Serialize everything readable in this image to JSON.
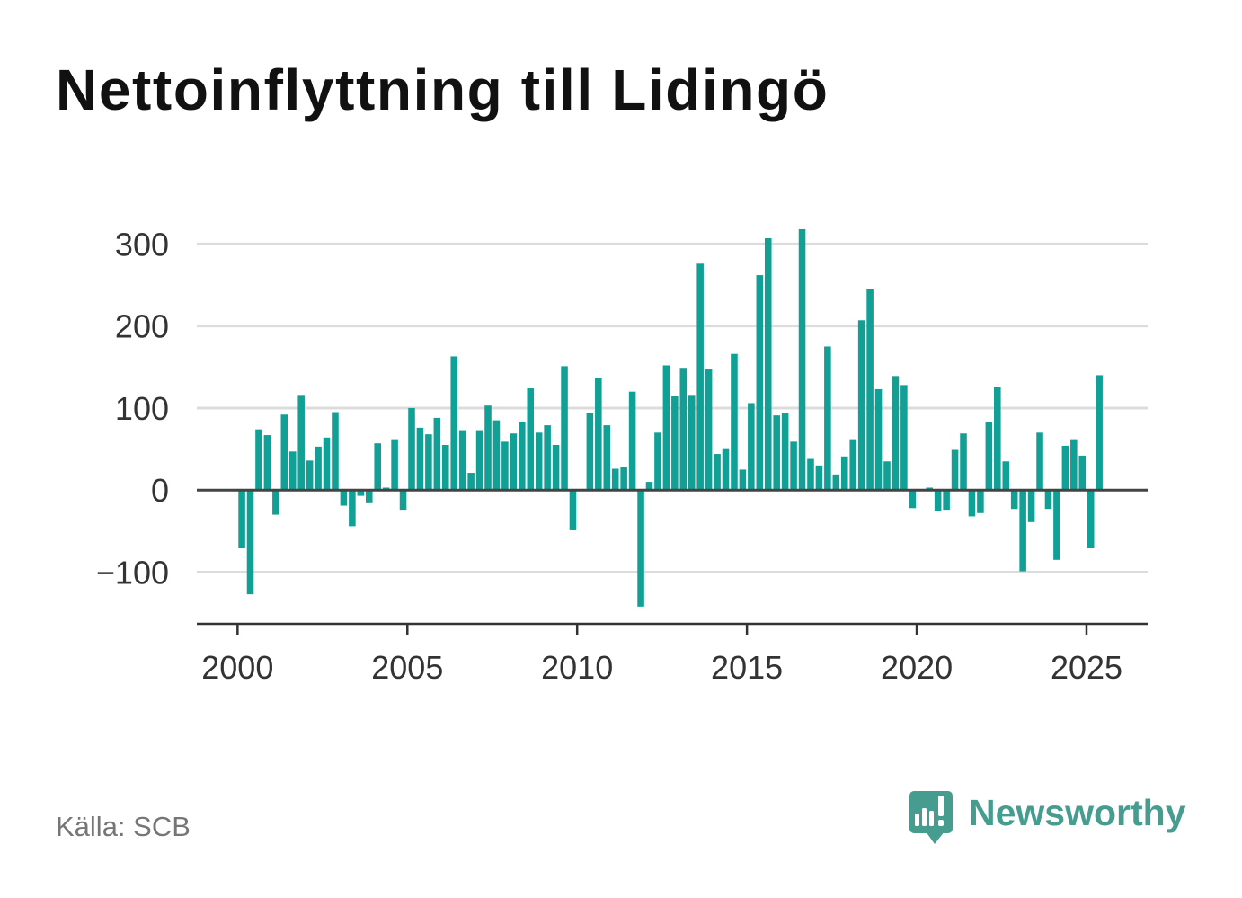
{
  "chart_data": {
    "type": "bar",
    "title": "Nettoinflyttning till Lidingö",
    "source": "Källa: SCB",
    "x": [
      "2000-Q1",
      "2000-Q2",
      "2000-Q3",
      "2000-Q4",
      "2001-Q1",
      "2001-Q2",
      "2001-Q3",
      "2001-Q4",
      "2002-Q1",
      "2002-Q2",
      "2002-Q3",
      "2002-Q4",
      "2003-Q1",
      "2003-Q2",
      "2003-Q3",
      "2003-Q4",
      "2004-Q1",
      "2004-Q2",
      "2004-Q3",
      "2004-Q4",
      "2005-Q1",
      "2005-Q2",
      "2005-Q3",
      "2005-Q4",
      "2006-Q1",
      "2006-Q2",
      "2006-Q3",
      "2006-Q4",
      "2007-Q1",
      "2007-Q2",
      "2007-Q3",
      "2007-Q4",
      "2008-Q1",
      "2008-Q2",
      "2008-Q3",
      "2008-Q4",
      "2009-Q1",
      "2009-Q2",
      "2009-Q3",
      "2009-Q4",
      "2010-Q1",
      "2010-Q2",
      "2010-Q3",
      "2010-Q4",
      "2011-Q1",
      "2011-Q2",
      "2011-Q3",
      "2011-Q4",
      "2012-Q1",
      "2012-Q2",
      "2012-Q3",
      "2012-Q4",
      "2013-Q1",
      "2013-Q2",
      "2013-Q3",
      "2013-Q4",
      "2014-Q1",
      "2014-Q2",
      "2014-Q3",
      "2014-Q4",
      "2015-Q1",
      "2015-Q2",
      "2015-Q3",
      "2015-Q4",
      "2016-Q1",
      "2016-Q2",
      "2016-Q3",
      "2016-Q4",
      "2017-Q1",
      "2017-Q2",
      "2017-Q3",
      "2017-Q4",
      "2018-Q1",
      "2018-Q2",
      "2018-Q3",
      "2018-Q4",
      "2019-Q1",
      "2019-Q2",
      "2019-Q3",
      "2019-Q4",
      "2020-Q1",
      "2020-Q2",
      "2020-Q3",
      "2020-Q4",
      "2021-Q1",
      "2021-Q2",
      "2021-Q3",
      "2021-Q4",
      "2022-Q1",
      "2022-Q2",
      "2022-Q3",
      "2022-Q4",
      "2023-Q1",
      "2023-Q2",
      "2023-Q3",
      "2023-Q4",
      "2024-Q1",
      "2024-Q2",
      "2024-Q3",
      "2024-Q4",
      "2025-Q1",
      "2025-Q2"
    ],
    "values": [
      -71,
      -127,
      74,
      67,
      -30,
      92,
      47,
      116,
      36,
      53,
      64,
      95,
      -19,
      -44,
      -7,
      -16,
      57,
      3,
      62,
      -24,
      100,
      76,
      68,
      88,
      55,
      163,
      73,
      21,
      73,
      103,
      85,
      59,
      69,
      83,
      124,
      70,
      79,
      55,
      151,
      -49,
      0,
      94,
      137,
      79,
      26,
      28,
      120,
      -142,
      10,
      70,
      152,
      115,
      149,
      116,
      276,
      147,
      44,
      51,
      166,
      25,
      106,
      262,
      307,
      91,
      94,
      59,
      318,
      38,
      30,
      175,
      19,
      41,
      62,
      207,
      245,
      123,
      35,
      139,
      128,
      -22,
      0,
      3,
      -26,
      -24,
      49,
      69,
      -32,
      -28,
      83,
      126,
      35,
      -23,
      -99,
      -39,
      70,
      -23,
      -85,
      54,
      62,
      42,
      -71,
      140
    ],
    "xticks": [
      2000,
      2005,
      2010,
      2015,
      2020,
      2025
    ],
    "yticks": [
      {
        "value": 300,
        "label": "300"
      },
      {
        "value": 200,
        "label": "200"
      },
      {
        "value": 100,
        "label": "100"
      },
      {
        "value": 0,
        "label": "0"
      },
      {
        "value": -100,
        "label": "−100"
      }
    ],
    "xlim": [
      1998.8,
      2026.8
    ],
    "ylim": [
      -163,
      330
    ],
    "grid": "horizontal",
    "legend": "none",
    "bar_color": "#11a095"
  },
  "brand": {
    "name": "Newsworthy",
    "icon": "newsworthy-logo-icon",
    "color": "#469d8f"
  }
}
